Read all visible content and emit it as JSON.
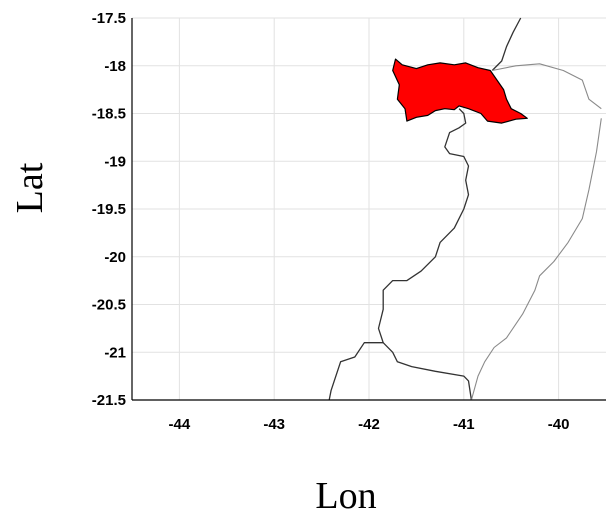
{
  "map": {
    "xlabel": "Lon",
    "ylabel": "Lat",
    "lon_range": [
      -44.5,
      -39.5
    ],
    "lat_range": [
      -21.5,
      -17.5
    ],
    "x_ticks": [
      {
        "value": -44,
        "label": "-44"
      },
      {
        "value": -43,
        "label": "-43"
      },
      {
        "value": -42,
        "label": "-42"
      },
      {
        "value": -41,
        "label": "-41"
      },
      {
        "value": -40,
        "label": "-40"
      }
    ],
    "y_ticks": [
      {
        "value": -17.5,
        "label": "-17.5"
      },
      {
        "value": -18,
        "label": "-18"
      },
      {
        "value": -18.5,
        "label": "-18.5"
      },
      {
        "value": -19,
        "label": "-19"
      },
      {
        "value": -19.5,
        "label": "-19.5"
      },
      {
        "value": -20,
        "label": "-20"
      },
      {
        "value": -20.5,
        "label": "-20.5"
      },
      {
        "value": -21,
        "label": "-21"
      },
      {
        "value": -21.5,
        "label": "-21.5"
      }
    ],
    "grid": true,
    "colors": {
      "region_fill": "#ff0000",
      "region_edge": "#000000",
      "border_dark": "#333333",
      "border_light": "#8a8a8a",
      "grid": "#e2e2e2"
    },
    "highlighted_region": [
      [
        -41.72,
        -17.93
      ],
      [
        -41.65,
        -17.99
      ],
      [
        -41.5,
        -18.03
      ],
      [
        -41.38,
        -17.99
      ],
      [
        -41.25,
        -17.97
      ],
      [
        -41.1,
        -17.99
      ],
      [
        -40.98,
        -17.97
      ],
      [
        -40.85,
        -18.02
      ],
      [
        -40.72,
        -18.05
      ],
      [
        -40.65,
        -18.15
      ],
      [
        -40.58,
        -18.25
      ],
      [
        -40.55,
        -18.35
      ],
      [
        -40.5,
        -18.45
      ],
      [
        -40.4,
        -18.5
      ],
      [
        -40.33,
        -18.55
      ],
      [
        -40.45,
        -18.56
      ],
      [
        -40.6,
        -18.6
      ],
      [
        -40.75,
        -18.58
      ],
      [
        -40.82,
        -18.5
      ],
      [
        -40.95,
        -18.45
      ],
      [
        -41.05,
        -18.42
      ],
      [
        -41.1,
        -18.46
      ],
      [
        -41.2,
        -18.45
      ],
      [
        -41.3,
        -18.47
      ],
      [
        -41.38,
        -18.52
      ],
      [
        -41.5,
        -18.54
      ],
      [
        -41.6,
        -18.58
      ],
      [
        -41.62,
        -18.45
      ],
      [
        -41.7,
        -18.35
      ],
      [
        -41.68,
        -18.2
      ],
      [
        -41.75,
        -18.05
      ]
    ],
    "border_lines": [
      {
        "tone": "dark",
        "points": [
          [
            -41.05,
            -18.45
          ],
          [
            -41.0,
            -18.5
          ],
          [
            -40.98,
            -18.6
          ],
          [
            -41.05,
            -18.65
          ],
          [
            -41.15,
            -18.7
          ],
          [
            -41.2,
            -18.85
          ],
          [
            -41.15,
            -18.92
          ],
          [
            -41.0,
            -18.95
          ],
          [
            -40.95,
            -19.05
          ],
          [
            -40.98,
            -19.2
          ],
          [
            -40.95,
            -19.35
          ],
          [
            -41.0,
            -19.5
          ],
          [
            -41.1,
            -19.7
          ],
          [
            -41.25,
            -19.85
          ],
          [
            -41.3,
            -20.0
          ],
          [
            -41.45,
            -20.15
          ],
          [
            -41.6,
            -20.25
          ],
          [
            -41.75,
            -20.25
          ],
          [
            -41.85,
            -20.35
          ],
          [
            -41.85,
            -20.55
          ],
          [
            -41.9,
            -20.75
          ],
          [
            -41.85,
            -20.9
          ],
          [
            -42.05,
            -20.9
          ],
          [
            -42.15,
            -21.05
          ],
          [
            -42.3,
            -21.1
          ],
          [
            -42.4,
            -21.4
          ],
          [
            -42.42,
            -21.5
          ]
        ]
      },
      {
        "tone": "dark",
        "points": [
          [
            -41.85,
            -20.9
          ],
          [
            -41.75,
            -21.0
          ],
          [
            -41.7,
            -21.1
          ],
          [
            -41.55,
            -21.15
          ],
          [
            -41.3,
            -21.2
          ],
          [
            -41.0,
            -21.25
          ],
          [
            -40.95,
            -21.3
          ],
          [
            -40.92,
            -21.5
          ]
        ]
      },
      {
        "tone": "dark",
        "points": [
          [
            -40.7,
            -18.05
          ],
          [
            -40.6,
            -17.95
          ],
          [
            -40.55,
            -17.8
          ],
          [
            -40.48,
            -17.65
          ],
          [
            -40.4,
            -17.5
          ]
        ]
      },
      {
        "tone": "light",
        "points": [
          [
            -40.7,
            -18.05
          ],
          [
            -40.45,
            -18.0
          ],
          [
            -40.2,
            -17.98
          ],
          [
            -39.95,
            -18.05
          ],
          [
            -39.75,
            -18.15
          ],
          [
            -39.68,
            -18.35
          ],
          [
            -39.55,
            -18.45
          ]
        ]
      },
      {
        "tone": "light",
        "points": [
          [
            -39.55,
            -18.55
          ],
          [
            -39.6,
            -18.9
          ],
          [
            -39.68,
            -19.3
          ],
          [
            -39.75,
            -19.6
          ],
          [
            -39.9,
            -19.85
          ],
          [
            -40.05,
            -20.05
          ],
          [
            -40.2,
            -20.2
          ],
          [
            -40.25,
            -20.35
          ],
          [
            -40.38,
            -20.6
          ],
          [
            -40.55,
            -20.85
          ],
          [
            -40.68,
            -20.95
          ],
          [
            -40.78,
            -21.1
          ],
          [
            -40.85,
            -21.25
          ],
          [
            -40.92,
            -21.5
          ]
        ]
      }
    ]
  }
}
